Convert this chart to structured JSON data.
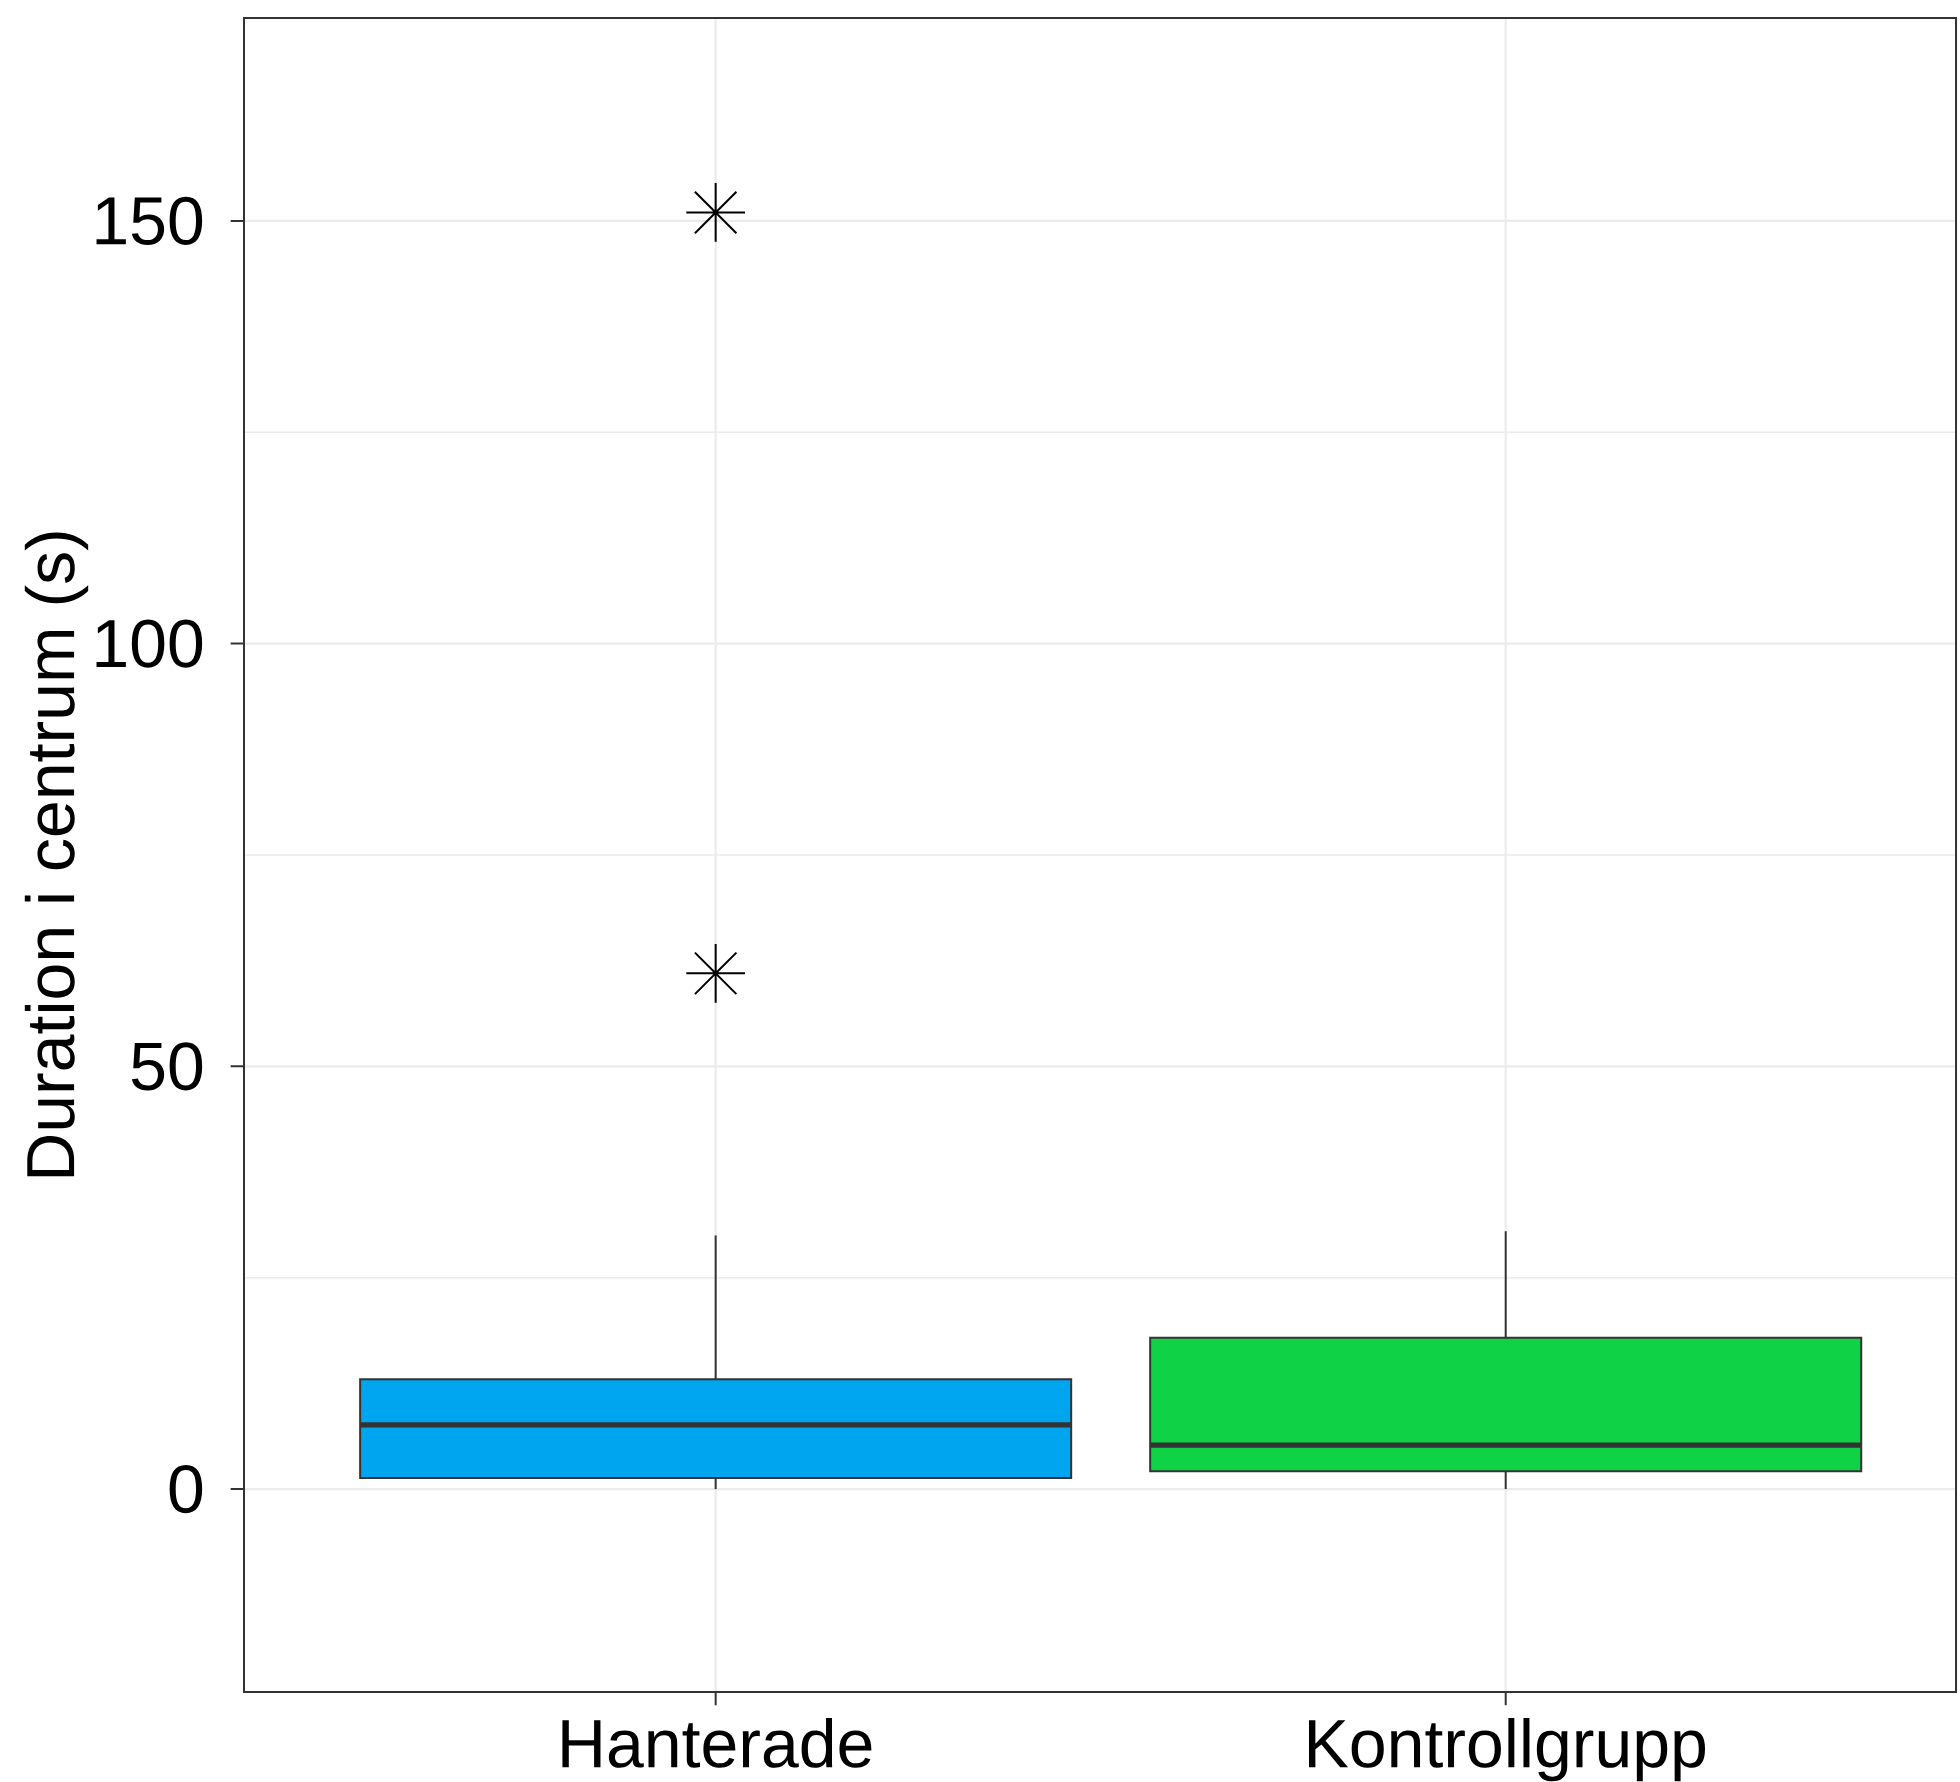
{
  "chart_data": {
    "type": "box",
    "categories": [
      "Hanterade",
      "Kontrollgrupp"
    ],
    "colors": [
      "#00a5ef",
      "#10d246"
    ],
    "boxes": [
      {
        "low": 0,
        "q1": 1.3,
        "median": 7.6,
        "q3": 13,
        "high": 30,
        "outliers": [
          61,
          151
        ]
      },
      {
        "low": 0,
        "q1": 2.1,
        "median": 5.2,
        "q3": 17.9,
        "high": 30.5
      }
    ],
    "ylabel": "Duration i centrum (s)",
    "ylim": [
      -24,
      174
    ],
    "yticks": [
      0,
      50,
      100,
      150
    ],
    "grid": true,
    "marker": "star"
  }
}
